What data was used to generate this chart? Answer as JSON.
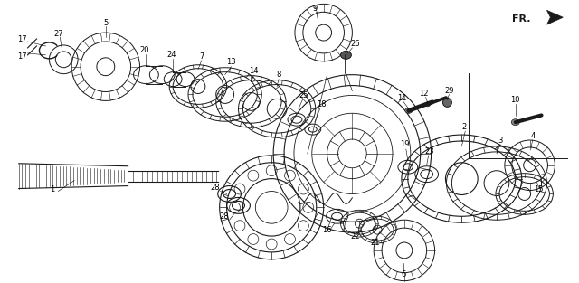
{
  "bg_color": "#ffffff",
  "line_color": "#1a1a1a",
  "fig_width": 6.4,
  "fig_height": 3.13,
  "fr_label": "FR.",
  "dpi": 100
}
